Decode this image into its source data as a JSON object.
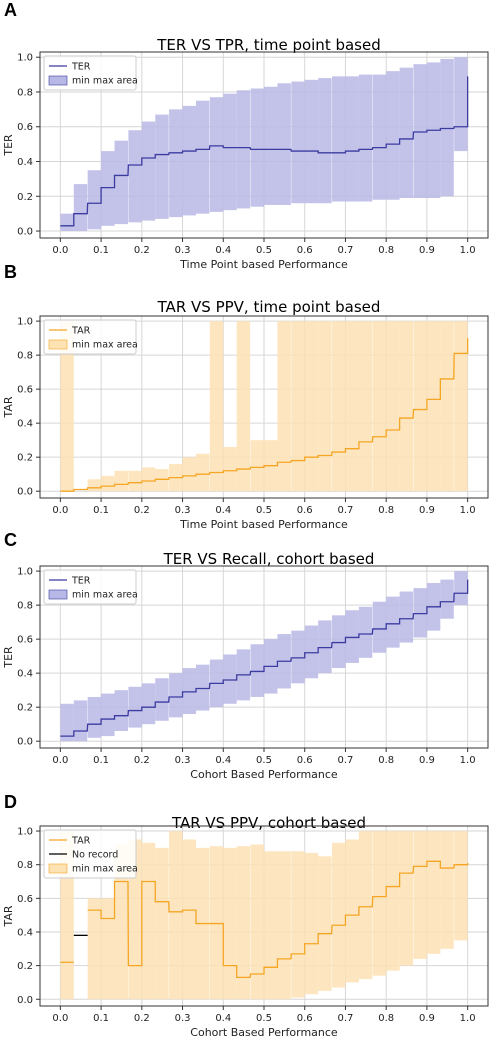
{
  "chart_data": [
    {
      "panel": "A",
      "type": "area",
      "title": "TER VS TPR, time point based",
      "xlabel": "Time Point based Performance",
      "ylabel": "TER",
      "xlim": [
        -0.05,
        1.05
      ],
      "ylim": [
        -0.04,
        1.03
      ],
      "xticks": [
        "0.0",
        "0.1",
        "0.2",
        "0.3",
        "0.4",
        "0.5",
        "0.6",
        "0.7",
        "0.8",
        "0.9",
        "1.0"
      ],
      "yticks": [
        "0.0",
        "0.2",
        "0.4",
        "0.6",
        "0.8",
        "1.0"
      ],
      "grid": true,
      "legend": [
        "TER",
        "min max area"
      ],
      "legend_position": "top-left",
      "colors": {
        "line": "#3b3ba0",
        "fill": "#b8b8e6"
      },
      "step_x": [
        0.0,
        0.033,
        0.067,
        0.1,
        0.133,
        0.167,
        0.2,
        0.233,
        0.267,
        0.3,
        0.333,
        0.367,
        0.4,
        0.433,
        0.467,
        0.5,
        0.533,
        0.567,
        0.6,
        0.633,
        0.667,
        0.7,
        0.733,
        0.767,
        0.8,
        0.833,
        0.867,
        0.9,
        0.933,
        0.967,
        1.0
      ],
      "series": [
        {
          "name": "TER",
          "role": "line",
          "values": [
            0.03,
            0.1,
            0.16,
            0.25,
            0.32,
            0.38,
            0.42,
            0.44,
            0.45,
            0.46,
            0.47,
            0.49,
            0.48,
            0.48,
            0.47,
            0.47,
            0.47,
            0.46,
            0.46,
            0.45,
            0.45,
            0.46,
            0.47,
            0.48,
            0.5,
            0.53,
            0.57,
            0.58,
            0.59,
            0.6,
            0.89
          ]
        },
        {
          "name": "min",
          "role": "area-lower",
          "values": [
            0.0,
            0.0,
            0.01,
            0.03,
            0.04,
            0.05,
            0.06,
            0.07,
            0.08,
            0.09,
            0.1,
            0.11,
            0.12,
            0.13,
            0.14,
            0.15,
            0.15,
            0.16,
            0.16,
            0.16,
            0.17,
            0.17,
            0.17,
            0.18,
            0.18,
            0.19,
            0.19,
            0.19,
            0.2,
            0.46,
            0.46
          ]
        },
        {
          "name": "max",
          "role": "area-upper",
          "values": [
            0.1,
            0.27,
            0.35,
            0.46,
            0.52,
            0.58,
            0.63,
            0.67,
            0.7,
            0.72,
            0.75,
            0.77,
            0.79,
            0.81,
            0.82,
            0.83,
            0.85,
            0.86,
            0.87,
            0.88,
            0.89,
            0.89,
            0.9,
            0.9,
            0.92,
            0.94,
            0.96,
            0.97,
            0.99,
            1.0,
            1.0
          ]
        }
      ]
    },
    {
      "panel": "B",
      "type": "area",
      "title": "TAR VS PPV, time point based",
      "xlabel": "Time Point based Performance",
      "ylabel": "TAR",
      "xlim": [
        -0.05,
        1.05
      ],
      "ylim": [
        -0.04,
        1.03
      ],
      "xticks": [
        "0.0",
        "0.1",
        "0.2",
        "0.3",
        "0.4",
        "0.5",
        "0.6",
        "0.7",
        "0.8",
        "0.9",
        "1.0"
      ],
      "yticks": [
        "0.0",
        "0.2",
        "0.4",
        "0.6",
        "0.8",
        "1.0"
      ],
      "grid": true,
      "legend": [
        "TAR",
        "min max area"
      ],
      "legend_position": "top-left",
      "colors": {
        "line": "#f5a524",
        "fill": "#fde2b4"
      },
      "step_x": [
        0.0,
        0.033,
        0.067,
        0.1,
        0.133,
        0.167,
        0.2,
        0.233,
        0.267,
        0.3,
        0.333,
        0.367,
        0.4,
        0.433,
        0.467,
        0.5,
        0.533,
        0.567,
        0.6,
        0.633,
        0.667,
        0.7,
        0.733,
        0.767,
        0.8,
        0.833,
        0.867,
        0.9,
        0.933,
        0.967,
        1.0
      ],
      "series": [
        {
          "name": "TAR",
          "role": "line",
          "values": [
            0.0,
            0.01,
            0.02,
            0.03,
            0.04,
            0.05,
            0.06,
            0.07,
            0.08,
            0.09,
            0.1,
            0.11,
            0.12,
            0.13,
            0.14,
            0.15,
            0.17,
            0.18,
            0.2,
            0.21,
            0.23,
            0.25,
            0.29,
            0.32,
            0.36,
            0.43,
            0.48,
            0.54,
            0.66,
            0.81,
            0.9
          ]
        },
        {
          "name": "min",
          "role": "area-lower",
          "values": [
            0.0,
            0.0,
            0.0,
            0.0,
            0.0,
            0.0,
            0.0,
            0.0,
            0.0,
            0.0,
            0.0,
            0.0,
            0.0,
            0.0,
            0.0,
            0.0,
            0.0,
            0.0,
            0.0,
            0.0,
            0.0,
            0.0,
            0.0,
            0.0,
            0.0,
            0.0,
            0.0,
            0.0,
            0.0,
            0.0,
            0.0
          ]
        },
        {
          "name": "max",
          "role": "area-upper",
          "values": [
            1.0,
            0.0,
            0.07,
            0.09,
            0.12,
            0.12,
            0.14,
            0.13,
            0.16,
            0.2,
            0.22,
            1.0,
            0.26,
            1.0,
            0.3,
            0.3,
            1.0,
            1.0,
            1.0,
            1.0,
            1.0,
            1.0,
            1.0,
            1.0,
            1.0,
            1.0,
            1.0,
            1.0,
            1.0,
            1.0,
            1.0
          ]
        }
      ]
    },
    {
      "panel": "C",
      "type": "area",
      "title": "TER VS Recall, cohort based",
      "xlabel": "Cohort Based Performance",
      "ylabel": "TER",
      "xlim": [
        -0.05,
        1.05
      ],
      "ylim": [
        -0.04,
        1.03
      ],
      "xticks": [
        "0.0",
        "0.1",
        "0.2",
        "0.3",
        "0.4",
        "0.5",
        "0.6",
        "0.7",
        "0.8",
        "0.9",
        "1.0"
      ],
      "yticks": [
        "0.0",
        "0.2",
        "0.4",
        "0.6",
        "0.8",
        "1.0"
      ],
      "grid": true,
      "legend": [
        "TER",
        "min max area"
      ],
      "legend_position": "top-left",
      "colors": {
        "line": "#3b3ba0",
        "fill": "#b8b8e6"
      },
      "step_x": [
        0.0,
        0.033,
        0.067,
        0.1,
        0.133,
        0.167,
        0.2,
        0.233,
        0.267,
        0.3,
        0.333,
        0.367,
        0.4,
        0.433,
        0.467,
        0.5,
        0.533,
        0.567,
        0.6,
        0.633,
        0.667,
        0.7,
        0.733,
        0.767,
        0.8,
        0.833,
        0.867,
        0.9,
        0.933,
        0.967,
        1.0
      ],
      "series": [
        {
          "name": "TER",
          "role": "line",
          "values": [
            0.03,
            0.06,
            0.1,
            0.13,
            0.15,
            0.18,
            0.2,
            0.23,
            0.26,
            0.29,
            0.31,
            0.34,
            0.36,
            0.39,
            0.41,
            0.44,
            0.47,
            0.49,
            0.52,
            0.55,
            0.58,
            0.61,
            0.63,
            0.66,
            0.69,
            0.72,
            0.75,
            0.79,
            0.82,
            0.87,
            0.95
          ]
        },
        {
          "name": "min",
          "role": "area-lower",
          "values": [
            0.0,
            0.0,
            0.02,
            0.03,
            0.06,
            0.08,
            0.1,
            0.12,
            0.14,
            0.16,
            0.18,
            0.2,
            0.22,
            0.24,
            0.26,
            0.28,
            0.31,
            0.34,
            0.37,
            0.4,
            0.43,
            0.46,
            0.49,
            0.52,
            0.55,
            0.58,
            0.61,
            0.65,
            0.72,
            0.8,
            0.87
          ]
        },
        {
          "name": "max",
          "role": "area-upper",
          "values": [
            0.22,
            0.24,
            0.26,
            0.28,
            0.3,
            0.32,
            0.34,
            0.37,
            0.4,
            0.43,
            0.45,
            0.48,
            0.51,
            0.54,
            0.57,
            0.6,
            0.63,
            0.65,
            0.68,
            0.71,
            0.74,
            0.77,
            0.79,
            0.82,
            0.85,
            0.88,
            0.9,
            0.93,
            0.95,
            1.0,
            1.0
          ]
        }
      ]
    },
    {
      "panel": "D",
      "type": "area",
      "title": "TAR VS PPV, cohort based",
      "xlabel": "Cohort Based Performance",
      "ylabel": "TAR",
      "xlim": [
        -0.05,
        1.05
      ],
      "ylim": [
        -0.04,
        1.03
      ],
      "xticks": [
        "0.0",
        "0.1",
        "0.2",
        "0.3",
        "0.4",
        "0.5",
        "0.6",
        "0.7",
        "0.8",
        "0.9",
        "1.0"
      ],
      "yticks": [
        "0.0",
        "0.2",
        "0.4",
        "0.6",
        "0.8",
        "1.0"
      ],
      "grid": true,
      "legend": [
        "TAR",
        "No record",
        "min max area"
      ],
      "legend_position": "top-left",
      "colors": {
        "line": "#f5a524",
        "fill": "#fde2b4",
        "no_record": "#000000"
      },
      "no_record": {
        "x": [
          0.033,
          0.067
        ],
        "y": 0.38
      },
      "step_x": [
        0.0,
        0.033,
        0.067,
        0.1,
        0.133,
        0.167,
        0.2,
        0.233,
        0.267,
        0.3,
        0.333,
        0.367,
        0.4,
        0.433,
        0.467,
        0.5,
        0.533,
        0.567,
        0.6,
        0.633,
        0.667,
        0.7,
        0.733,
        0.767,
        0.8,
        0.833,
        0.867,
        0.9,
        0.933,
        0.967,
        1.0
      ],
      "series": [
        {
          "name": "TAR",
          "role": "line",
          "values": [
            0.22,
            null,
            0.53,
            0.48,
            0.7,
            0.2,
            0.7,
            0.58,
            0.52,
            0.53,
            0.45,
            0.45,
            0.2,
            0.13,
            0.15,
            0.19,
            0.24,
            0.27,
            0.33,
            0.39,
            0.44,
            0.5,
            0.55,
            0.61,
            0.67,
            0.75,
            0.79,
            0.82,
            0.78,
            0.8,
            0.81
          ]
        },
        {
          "name": "min",
          "role": "area-lower",
          "values": [
            0.0,
            0.0,
            0.0,
            0.0,
            0.0,
            0.0,
            0.0,
            0.0,
            0.0,
            0.0,
            0.0,
            0.0,
            0.0,
            0.0,
            0.0,
            0.0,
            0.0,
            0.01,
            0.03,
            0.05,
            0.07,
            0.1,
            0.12,
            0.14,
            0.17,
            0.2,
            0.24,
            0.27,
            0.3,
            0.35,
            0.35
          ]
        },
        {
          "name": "max",
          "role": "area-upper",
          "values": [
            1.0,
            0.0,
            0.6,
            0.6,
            0.92,
            0.95,
            0.93,
            0.9,
            1.0,
            0.95,
            0.9,
            0.91,
            0.9,
            0.91,
            0.92,
            0.88,
            0.88,
            0.88,
            0.87,
            0.85,
            0.93,
            0.95,
            1.0,
            1.0,
            1.0,
            1.0,
            1.0,
            1.0,
            1.0,
            1.0,
            1.0
          ]
        }
      ]
    }
  ],
  "panels": [
    {
      "letter": "A"
    },
    {
      "letter": "B"
    },
    {
      "letter": "C"
    },
    {
      "letter": "D"
    }
  ]
}
